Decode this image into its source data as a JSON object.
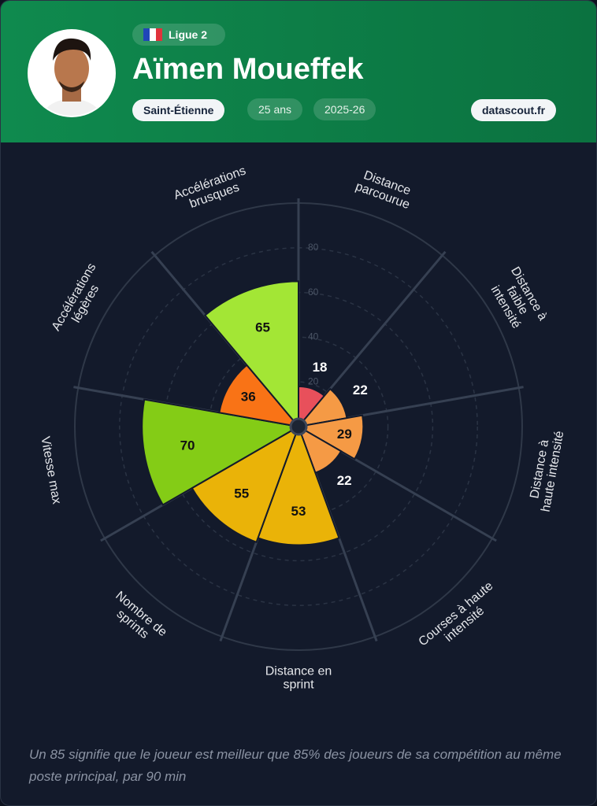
{
  "header": {
    "league": "Ligue 2",
    "player": "Aïmen Moueffek",
    "club": "Saint-Étienne",
    "age": "25 ans",
    "season": "2025-26",
    "site": "datascout.fr"
  },
  "chart_data": {
    "type": "pizza",
    "categories": [
      [
        "Distance",
        "parcourue"
      ],
      [
        "Distance à",
        "faible",
        "intensité"
      ],
      [
        "Distance à",
        "haute intensité"
      ],
      [
        "Courses à haute",
        "intensité"
      ],
      [
        "Distance en",
        "sprint"
      ],
      [
        "Nombre de",
        "sprints"
      ],
      [
        "Vitesse max"
      ],
      [
        "Accélérations",
        "légères"
      ],
      [
        "Accélérations",
        "brusques"
      ]
    ],
    "values": [
      18,
      22,
      29,
      22,
      53,
      55,
      70,
      36,
      65
    ],
    "colors": [
      "#e8505b",
      "#f59a45",
      "#f59a45",
      "#f59a45",
      "#eab308",
      "#eab308",
      "#84cc16",
      "#f97316",
      "#a3e635"
    ],
    "rlim": [
      0,
      100
    ],
    "rticks": [
      20,
      40,
      60,
      80
    ],
    "grid": true
  },
  "footnote": "Un 85 signifie que le joueur est meilleur que 85% des joueurs de sa compétition au même poste principal, par 90 min"
}
